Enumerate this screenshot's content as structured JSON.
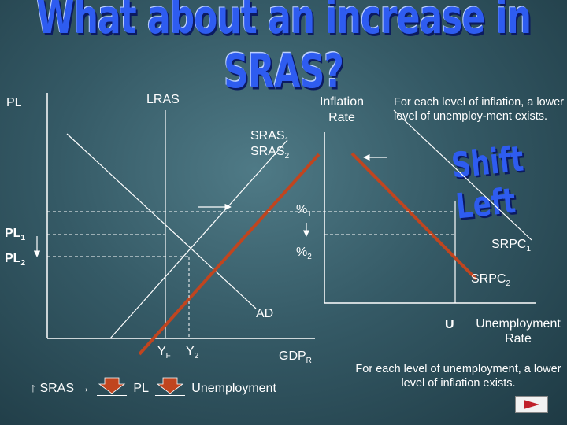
{
  "title": "What about an increase in SRAS?",
  "shift_label": "Shift Left",
  "left_graph": {
    "y_axis_label": "PL",
    "x_axis_label": "GDP",
    "x_axis_sub": "R",
    "lras_label": "LRAS",
    "sras1_label": "SRAS",
    "sras1_sub": "1",
    "sras2_label": "SRAS",
    "sras2_sub": "2",
    "ad_label": "AD",
    "pl1_label": "PL",
    "pl1_sub": "1",
    "pl2_label": "PL",
    "pl2_sub": "2",
    "yf_label": "Y",
    "yf_sub": "F",
    "y2_label": "Y",
    "y2_sub": "2"
  },
  "right_graph": {
    "y_axis_label": "Inflation Rate",
    "x_axis_label": "Unemployment Rate",
    "u_label": "U",
    "pct1_label": "%",
    "pct1_sub": "1",
    "pct2_label": "%",
    "pct2_sub": "2",
    "srpc1_label": "SRPC",
    "srpc1_sub": "1",
    "srpc2_label": "SRPC",
    "srpc2_sub": "2",
    "note_top": "For each level of inflation, a lower level of unemploy-ment exists.",
    "note_bottom": "For each level of unemployment, a lower level of inflation exists."
  },
  "chain": {
    "up_arrow": "↑",
    "sras": "SRAS",
    "right_arrow": "→",
    "pl": "PL",
    "unemployment": "Unemployment"
  },
  "colors": {
    "title": "#2e5cf0",
    "shifted_curve": "#c0451f",
    "arrow_fill": "#c0451f"
  }
}
